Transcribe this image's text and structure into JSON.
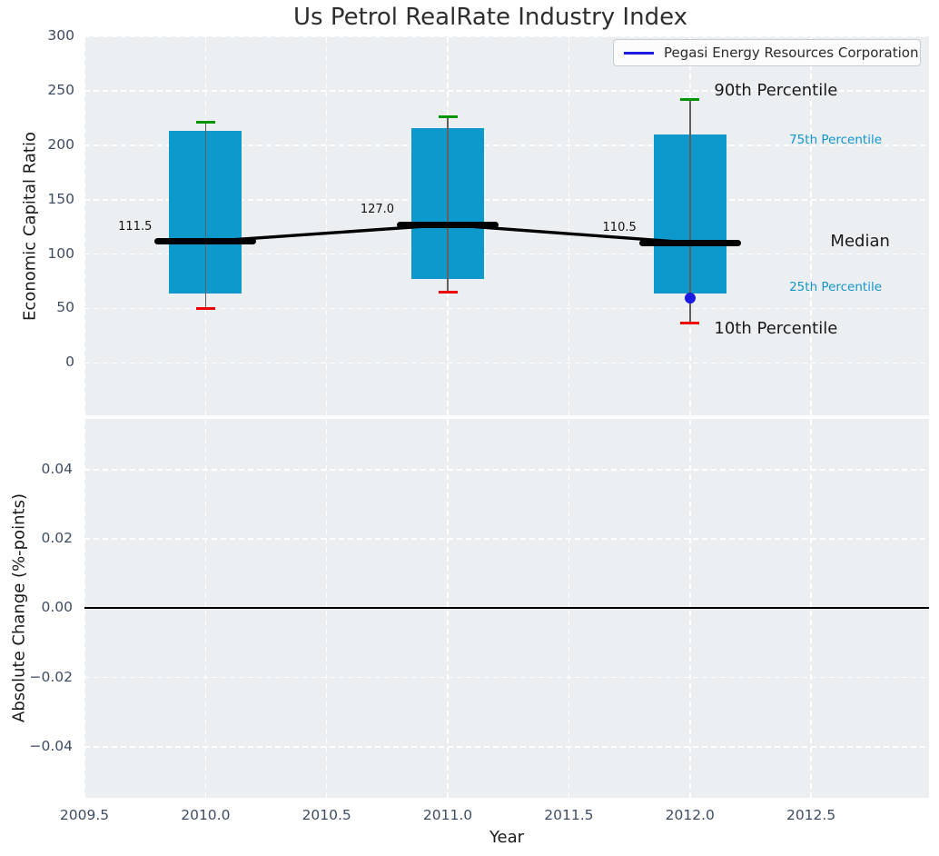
{
  "title": "Us Petrol RealRate Industry Index",
  "legend": {
    "label": "Pegasi Energy Resources Corporation",
    "line_color": "#1a1ae0"
  },
  "colors": {
    "axes_bg": "#ebeff1",
    "grid": "#ffffff",
    "box_fill": "#0d99cc",
    "whisker": "#606060",
    "p90_cap": "#009500",
    "p10_cap": "#ee0000",
    "median_line": "#000000",
    "company_marker": "#1a1ae0",
    "tick_text": "#3f4d63",
    "small_annotation_text": "#1396ce",
    "large_annotation_text": "#1a1a1a"
  },
  "chart_data": [
    {
      "type": "box",
      "title": "Us Petrol RealRate Industry Index",
      "xlabel": "",
      "ylabel": "Economic Capital Ratio",
      "x": [
        2010,
        2011,
        2012
      ],
      "xlim": [
        2009.5,
        2013.0
      ],
      "ylim": [
        -48,
        300
      ],
      "grid": true,
      "ytick_values": [
        0,
        50,
        100,
        150,
        200,
        250,
        300
      ],
      "ytick_labels": [
        "0",
        "50",
        "100",
        "150",
        "200",
        "250",
        "300"
      ],
      "series": [
        {
          "name": "90th Percentile",
          "values": [
            221,
            226,
            242
          ]
        },
        {
          "name": "75th Percentile",
          "values": [
            213,
            216,
            210
          ]
        },
        {
          "name": "Median",
          "values": [
            111.5,
            127.0,
            110.5
          ]
        },
        {
          "name": "25th Percentile",
          "values": [
            64,
            77,
            64
          ]
        },
        {
          "name": "10th Percentile",
          "values": [
            50,
            65,
            37
          ]
        }
      ],
      "median_labels": [
        "111.5",
        "127.0",
        "110.5"
      ],
      "company_series": {
        "name": "Pegasi Energy Resources Corporation",
        "points": [
          {
            "x": 2012,
            "y": 60
          }
        ]
      },
      "annotations": [
        {
          "text": "90th Percentile",
          "x": 2012.1,
          "y": 250,
          "size": "large"
        },
        {
          "text": "75th Percentile",
          "x": 2012.41,
          "y": 205,
          "size": "small"
        },
        {
          "text": "Median",
          "x": 2012.58,
          "y": 111,
          "size": "large"
        },
        {
          "text": "25th Percentile",
          "x": 2012.41,
          "y": 70,
          "size": "small"
        },
        {
          "text": "10th Percentile",
          "x": 2012.1,
          "y": 31,
          "size": "large"
        }
      ],
      "legend_position": "upper right"
    },
    {
      "type": "line",
      "xlabel": "Year",
      "ylabel": "Absolute Change (%-points)",
      "xlim": [
        2009.5,
        2013.0
      ],
      "ylim": [
        -0.055,
        0.055
      ],
      "grid": true,
      "xtick_values": [
        2009.5,
        2010.0,
        2010.5,
        2011.0,
        2011.5,
        2012.0,
        2012.5
      ],
      "xtick_labels": [
        "2009.5",
        "2010.0",
        "2010.5",
        "2011.0",
        "2011.5",
        "2012.0",
        "2012.5"
      ],
      "ytick_values": [
        0.04,
        0.02,
        0.0,
        -0.02,
        -0.04
      ],
      "ytick_labels": [
        "0.04",
        "0.02",
        "0.00",
        "−0.02",
        "−0.04"
      ],
      "zero_line": 0.0,
      "series": []
    }
  ]
}
